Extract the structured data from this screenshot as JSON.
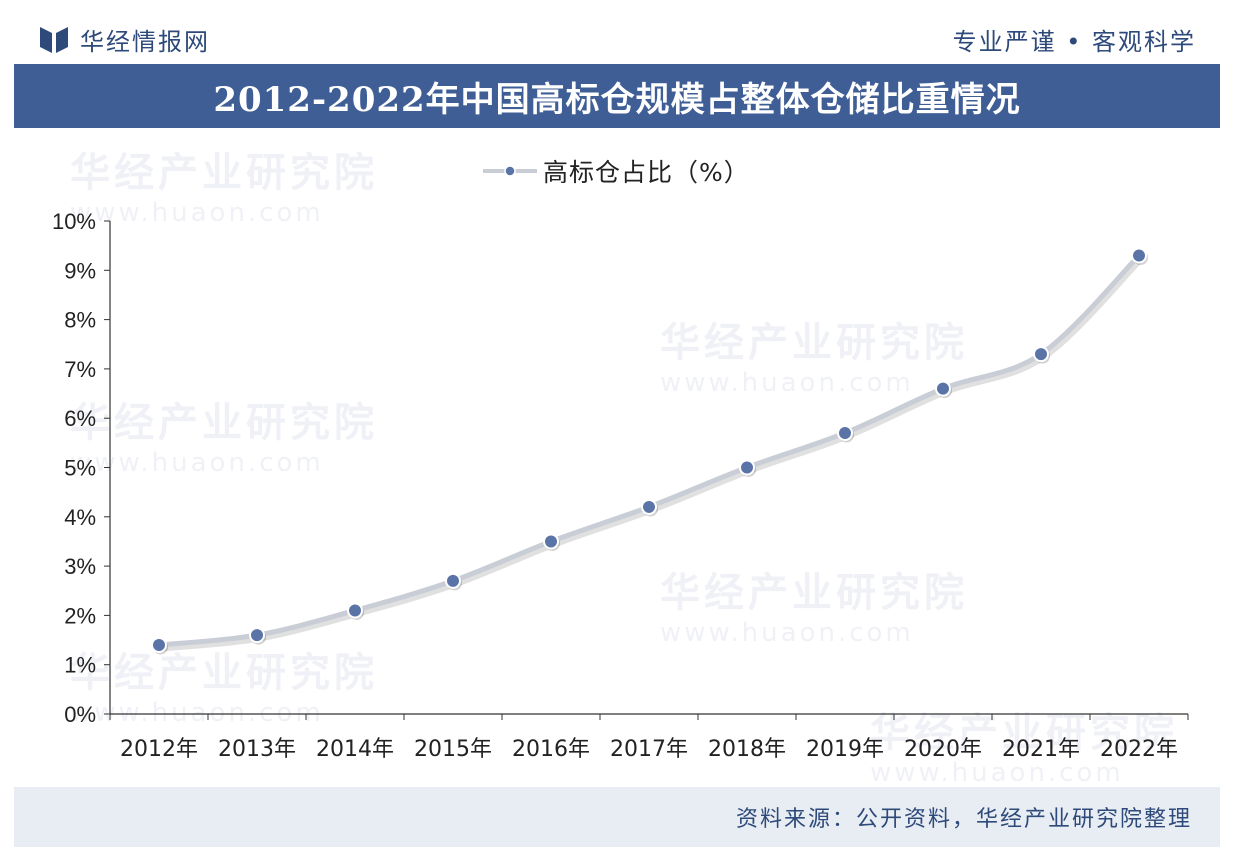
{
  "header": {
    "brand": "华经情报网",
    "slogan": "专业严谨 • 客观科学",
    "title": "2012-2022年中国高标仓规模占整体仓储比重情况"
  },
  "footer": {
    "source": "资料来源：公开资料，华经产业研究院整理"
  },
  "watermark": {
    "name": "华经产业研究院",
    "url": "www.huaon.com"
  },
  "colors": {
    "brand": "#3f5e95",
    "line": "#c9cdd6",
    "marker": "#5b74a8"
  },
  "chart_data": {
    "type": "line",
    "categories": [
      "2012年",
      "2013年",
      "2014年",
      "2015年",
      "2016年",
      "2017年",
      "2018年",
      "2019年",
      "2020年",
      "2021年",
      "2022年"
    ],
    "series": [
      {
        "name": "高标仓占比（%）",
        "values": [
          1.4,
          1.6,
          2.1,
          2.7,
          3.5,
          4.2,
          5.0,
          5.7,
          6.6,
          7.3,
          9.3
        ]
      }
    ],
    "y_ticks": [
      "0%",
      "1%",
      "2%",
      "3%",
      "4%",
      "5%",
      "6%",
      "7%",
      "8%",
      "9%",
      "10%"
    ],
    "ylim": [
      0,
      10
    ],
    "grid": false,
    "legend_position": "top-center"
  }
}
